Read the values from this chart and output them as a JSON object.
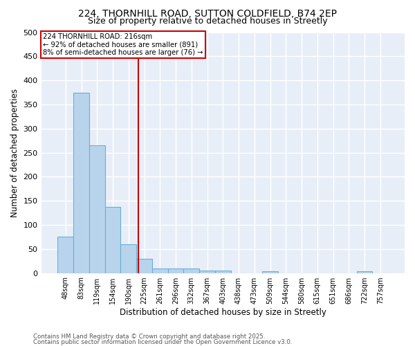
{
  "title1": "224, THORNHILL ROAD, SUTTON COLDFIELD, B74 2EP",
  "title2": "Size of property relative to detached houses in Streetly",
  "categories": [
    "48sqm",
    "83sqm",
    "119sqm",
    "154sqm",
    "190sqm",
    "225sqm",
    "261sqm",
    "296sqm",
    "332sqm",
    "367sqm",
    "403sqm",
    "438sqm",
    "473sqm",
    "509sqm",
    "544sqm",
    "580sqm",
    "615sqm",
    "651sqm",
    "686sqm",
    "722sqm",
    "757sqm"
  ],
  "values": [
    75,
    375,
    265,
    137,
    60,
    30,
    10,
    10,
    10,
    5,
    5,
    0,
    0,
    3,
    0,
    0,
    0,
    0,
    0,
    3,
    0
  ],
  "bar_color": "#b8d4ec",
  "bar_edge_color": "#6aaed6",
  "vline_x_index": 4.62,
  "vline_color": "#cc0000",
  "annotation_line1": "224 THORNHILL ROAD: 216sqm",
  "annotation_line2": "← 92% of detached houses are smaller (891)",
  "annotation_line3": "8% of semi-detached houses are larger (76) →",
  "annotation_box_color": "#cc0000",
  "xlabel": "Distribution of detached houses by size in Streetly",
  "ylabel": "Number of detached properties",
  "ylim": [
    0,
    500
  ],
  "yticks": [
    0,
    50,
    100,
    150,
    200,
    250,
    300,
    350,
    400,
    450,
    500
  ],
  "footer1": "Contains HM Land Registry data © Crown copyright and database right 2025.",
  "footer2": "Contains public sector information licensed under the Open Government Licence v3.0.",
  "bg_color": "#e8eef8",
  "title_fontsize": 10,
  "subtitle_fontsize": 9
}
